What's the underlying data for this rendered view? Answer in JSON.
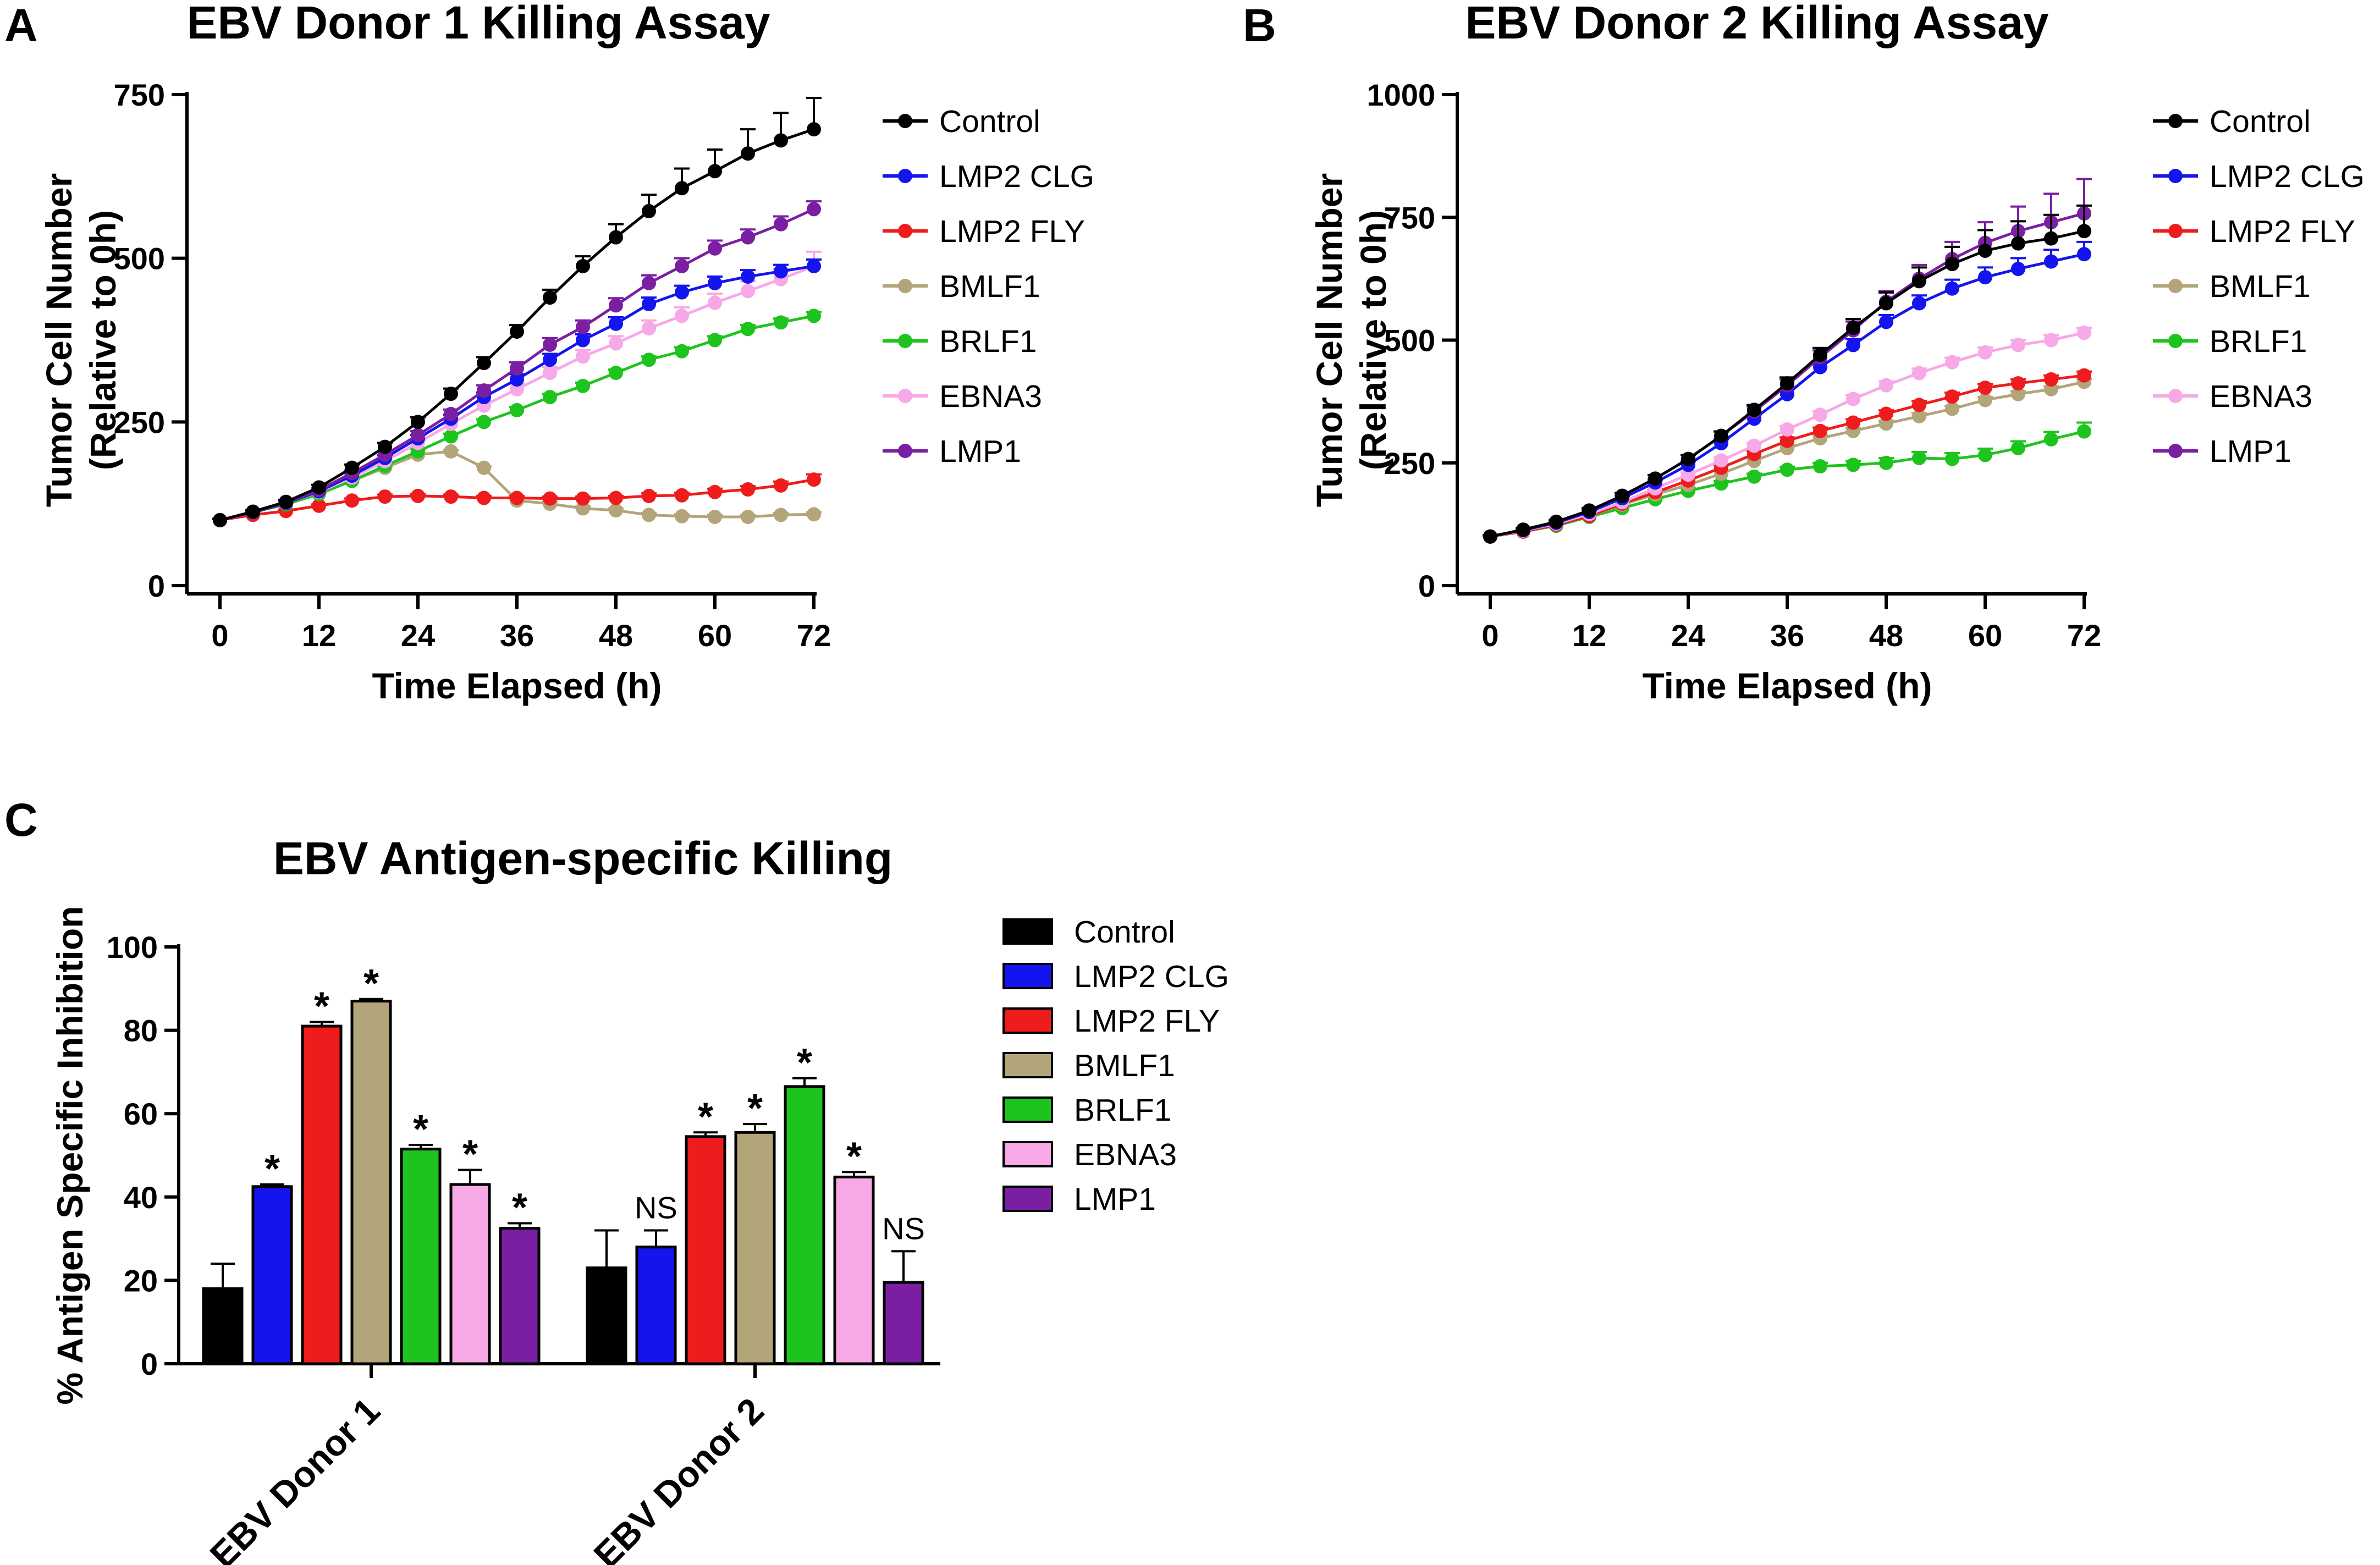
{
  "colors": {
    "Control": "#000000",
    "LMP2 CLG": "#1414ee",
    "LMP2 FLY": "#ee1c1c",
    "BMLF1": "#b3a57a",
    "BRLF1": "#1ec41e",
    "EBNA3": "#f7a8e6",
    "LMP1": "#7b1fa2"
  },
  "chart_data": [
    {
      "id": "A",
      "panel_letter": "A",
      "type": "line",
      "title": "EBV Donor 1 Killing Assay",
      "xlabel": "Time Elapsed (h)",
      "ylabel_lines": [
        "Tumor Cell Number",
        "(Relative to 0h)"
      ],
      "xlim": [
        0,
        72
      ],
      "ylim": [
        0,
        750
      ],
      "xticks": [
        0,
        12,
        24,
        36,
        48,
        60,
        72
      ],
      "yticks": [
        0,
        250,
        500,
        750
      ],
      "x": [
        0,
        4,
        8,
        12,
        16,
        20,
        24,
        28,
        32,
        36,
        40,
        44,
        48,
        52,
        56,
        60,
        64,
        68,
        72
      ],
      "legend": [
        "Control",
        "LMP2 CLG",
        "LMP2 FLY",
        "BMLF1",
        "BRLF1",
        "EBNA3",
        "LMP1"
      ],
      "series": [
        {
          "name": "BMLF1",
          "values": [
            100,
            112,
            125,
            140,
            160,
            180,
            200,
            205,
            180,
            130,
            125,
            118,
            115,
            108,
            106,
            105,
            105,
            108,
            109
          ],
          "errors": [
            2,
            2,
            2,
            2,
            2,
            2,
            2,
            2,
            2,
            3,
            3,
            3,
            3,
            3,
            3,
            3,
            3,
            3,
            3
          ]
        },
        {
          "name": "LMP2 FLY",
          "values": [
            100,
            108,
            114,
            122,
            130,
            136,
            137,
            136,
            134,
            134,
            133,
            133,
            134,
            137,
            138,
            143,
            147,
            153,
            162
          ],
          "errors": [
            2,
            2,
            2,
            2,
            3,
            3,
            3,
            3,
            3,
            3,
            3,
            3,
            3,
            4,
            4,
            5,
            5,
            6,
            8
          ]
        },
        {
          "name": "BRLF1",
          "values": [
            100,
            112,
            124,
            140,
            160,
            183,
            205,
            228,
            250,
            268,
            288,
            305,
            325,
            345,
            358,
            375,
            392,
            402,
            412
          ],
          "errors": [
            2,
            2,
            2,
            3,
            3,
            3,
            4,
            4,
            4,
            5,
            5,
            5,
            5,
            5,
            6,
            6,
            6,
            6,
            6
          ]
        },
        {
          "name": "EBNA3",
          "values": [
            100,
            112,
            126,
            143,
            165,
            190,
            218,
            247,
            275,
            300,
            325,
            350,
            370,
            393,
            412,
            432,
            450,
            468,
            488
          ],
          "errors": [
            2,
            2,
            3,
            3,
            4,
            4,
            5,
            6,
            7,
            8,
            9,
            10,
            11,
            12,
            13,
            14,
            15,
            16,
            22
          ]
        },
        {
          "name": "LMP2 CLG",
          "values": [
            100,
            112,
            126,
            144,
            168,
            195,
            225,
            255,
            288,
            315,
            345,
            375,
            400,
            430,
            448,
            462,
            472,
            480,
            488
          ],
          "errors": [
            2,
            2,
            3,
            3,
            4,
            4,
            5,
            6,
            7,
            8,
            9,
            9,
            10,
            10,
            10,
            10,
            10,
            10,
            10
          ]
        },
        {
          "name": "LMP1",
          "values": [
            100,
            112,
            127,
            146,
            172,
            200,
            230,
            262,
            298,
            332,
            368,
            395,
            428,
            462,
            488,
            515,
            532,
            552,
            575
          ],
          "errors": [
            2,
            2,
            3,
            3,
            4,
            5,
            6,
            7,
            8,
            9,
            10,
            10,
            11,
            12,
            12,
            12,
            12,
            12,
            12
          ]
        },
        {
          "name": "Control",
          "values": [
            100,
            113,
            128,
            150,
            180,
            212,
            250,
            293,
            340,
            388,
            440,
            488,
            532,
            572,
            607,
            633,
            660,
            680,
            697
          ],
          "errors": [
            2,
            2,
            3,
            4,
            5,
            6,
            7,
            8,
            9,
            10,
            12,
            15,
            20,
            25,
            30,
            33,
            37,
            42,
            48
          ]
        }
      ]
    },
    {
      "id": "B",
      "panel_letter": "B",
      "type": "line",
      "title": "EBV Donor 2 Killing Assay",
      "xlabel": "Time Elapsed (h)",
      "ylabel_lines": [
        "Tumor Cell Number",
        "(Relative to 0h)"
      ],
      "xlim": [
        0,
        72
      ],
      "ylim": [
        0,
        1000
      ],
      "xticks": [
        0,
        12,
        24,
        36,
        48,
        60,
        72
      ],
      "yticks": [
        0,
        250,
        500,
        750,
        1000
      ],
      "x": [
        0,
        4,
        8,
        12,
        16,
        20,
        24,
        28,
        32,
        36,
        40,
        44,
        48,
        52,
        56,
        60,
        64,
        68,
        72
      ],
      "legend": [
        "Control",
        "LMP2 CLG",
        "LMP2 FLY",
        "BMLF1",
        "BRLF1",
        "EBNA3",
        "LMP1"
      ],
      "series": [
        {
          "name": "BRLF1",
          "values": [
            100,
            110,
            122,
            140,
            158,
            176,
            193,
            208,
            222,
            236,
            243,
            246,
            250,
            260,
            258,
            266,
            280,
            298,
            314
          ],
          "errors": [
            2,
            2,
            3,
            3,
            4,
            4,
            5,
            5,
            6,
            6,
            7,
            8,
            10,
            12,
            12,
            13,
            14,
            15,
            18
          ]
        },
        {
          "name": "BMLF1",
          "values": [
            100,
            110,
            124,
            142,
            165,
            186,
            205,
            228,
            254,
            280,
            300,
            315,
            330,
            345,
            360,
            378,
            390,
            400,
            415
          ],
          "errors": [
            2,
            2,
            3,
            3,
            4,
            4,
            5,
            5,
            6,
            6,
            6,
            6,
            6,
            6,
            6,
            6,
            6,
            6,
            6
          ]
        },
        {
          "name": "LMP2 FLY",
          "values": [
            100,
            110,
            124,
            142,
            167,
            190,
            214,
            240,
            268,
            295,
            315,
            332,
            350,
            368,
            385,
            403,
            412,
            420,
            428
          ],
          "errors": [
            2,
            2,
            3,
            3,
            4,
            5,
            5,
            6,
            6,
            7,
            7,
            7,
            7,
            8,
            8,
            8,
            8,
            8,
            8
          ]
        },
        {
          "name": "EBNA3",
          "values": [
            100,
            112,
            126,
            146,
            170,
            198,
            226,
            255,
            285,
            318,
            348,
            380,
            408,
            433,
            455,
            475,
            490,
            500,
            515
          ],
          "errors": [
            2,
            2,
            3,
            3,
            4,
            5,
            5,
            6,
            6,
            7,
            7,
            8,
            8,
            9,
            9,
            10,
            10,
            10,
            10
          ]
        },
        {
          "name": "LMP2 CLG",
          "values": [
            100,
            113,
            128,
            150,
            178,
            210,
            246,
            290,
            340,
            390,
            445,
            490,
            537,
            575,
            605,
            628,
            645,
            660,
            675
          ],
          "errors": [
            2,
            2,
            3,
            4,
            5,
            6,
            7,
            8,
            9,
            10,
            11,
            12,
            14,
            16,
            18,
            20,
            22,
            24,
            25
          ]
        },
        {
          "name": "LMP1",
          "values": [
            100,
            114,
            130,
            153,
            183,
            218,
            258,
            305,
            355,
            408,
            465,
            520,
            578,
            625,
            665,
            698,
            722,
            740,
            758
          ],
          "errors": [
            3,
            3,
            4,
            5,
            6,
            7,
            8,
            9,
            10,
            12,
            14,
            18,
            22,
            28,
            35,
            42,
            50,
            58,
            70
          ]
        },
        {
          "name": "Control",
          "values": [
            100,
            114,
            130,
            153,
            183,
            218,
            258,
            305,
            358,
            412,
            470,
            525,
            575,
            620,
            655,
            682,
            697,
            707,
            722
          ],
          "errors": [
            3,
            3,
            4,
            5,
            6,
            7,
            8,
            9,
            10,
            12,
            14,
            18,
            22,
            28,
            35,
            42,
            45,
            48,
            52
          ]
        }
      ]
    },
    {
      "id": "C",
      "panel_letter": "C",
      "type": "bar",
      "title": "EBV Antigen-specific Killing",
      "ylabel": "% Antigen Specific Inhibition",
      "ylim": [
        0,
        100
      ],
      "yticks": [
        0,
        20,
        40,
        60,
        80,
        100
      ],
      "categories": [
        "EBV Donor 1",
        "EBV Donor 2"
      ],
      "legend": [
        "Control",
        "LMP2 CLG",
        "LMP2 FLY",
        "BMLF1",
        "BRLF1",
        "EBNA3",
        "LMP1"
      ],
      "series": [
        {
          "name": "Control",
          "values": [
            18,
            23
          ],
          "errors": [
            6,
            9
          ],
          "sig": [
            "",
            ""
          ]
        },
        {
          "name": "LMP2 CLG",
          "values": [
            42.5,
            28
          ],
          "errors": [
            0.5,
            4
          ],
          "sig": [
            "*",
            "NS"
          ]
        },
        {
          "name": "LMP2 FLY",
          "values": [
            81,
            54.5
          ],
          "errors": [
            1,
            1
          ],
          "sig": [
            "*",
            "*"
          ]
        },
        {
          "name": "BMLF1",
          "values": [
            87,
            55.5
          ],
          "errors": [
            0.5,
            2
          ],
          "sig": [
            "*",
            "*"
          ]
        },
        {
          "name": "BRLF1",
          "values": [
            51.5,
            66.5
          ],
          "errors": [
            1,
            2
          ],
          "sig": [
            "*",
            "*"
          ]
        },
        {
          "name": "EBNA3",
          "values": [
            43,
            44.8
          ],
          "errors": [
            3.5,
            1.2
          ],
          "sig": [
            "*",
            "*"
          ]
        },
        {
          "name": "LMP1",
          "values": [
            32.5,
            19.5
          ],
          "errors": [
            1.2,
            7.5
          ],
          "sig": [
            "*",
            "NS"
          ]
        }
      ]
    }
  ]
}
